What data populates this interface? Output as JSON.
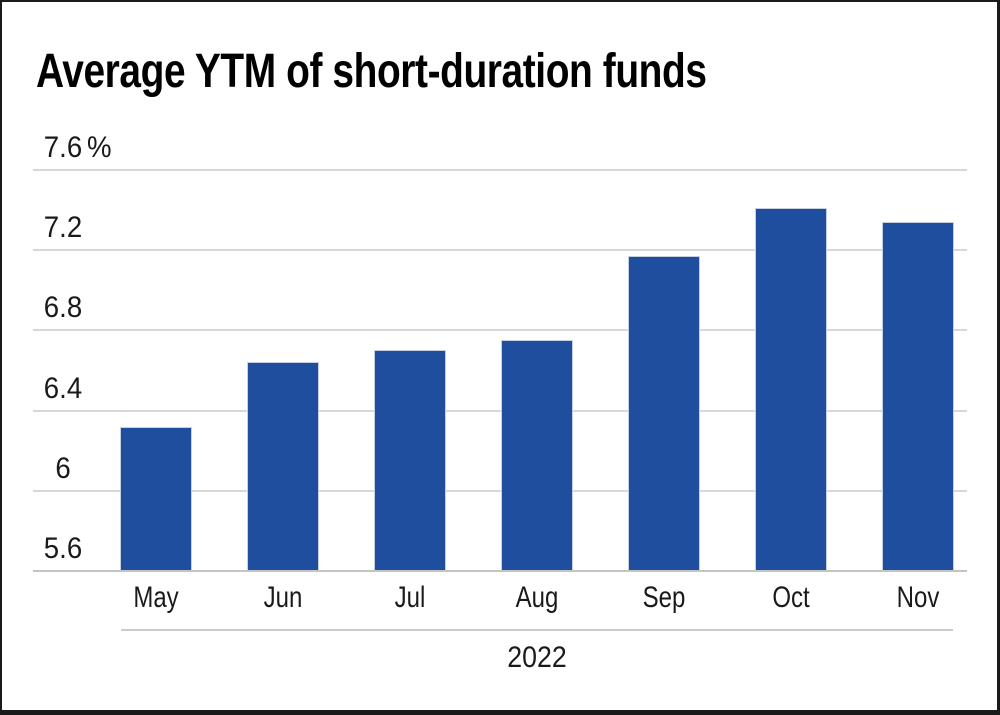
{
  "chart": {
    "title": "Average YTM of short-duration funds"
  },
  "chart_data": {
    "type": "bar",
    "title": "Average YTM of short-duration funds",
    "categories": [
      "May",
      "Jun",
      "Jul",
      "Aug",
      "Sep",
      "Oct",
      "Nov"
    ],
    "values": [
      6.32,
      6.64,
      6.7,
      6.75,
      7.17,
      7.41,
      7.34
    ],
    "unit": "%",
    "x_group_label": "2022",
    "xlabel": "2022",
    "ylabel": "",
    "ylim": [
      5.6,
      7.6
    ],
    "yticks": [
      {
        "value": 7.6,
        "label": "7.6",
        "unit": "%"
      },
      {
        "value": 7.2,
        "label": "7.2"
      },
      {
        "value": 6.8,
        "label": "6.8"
      },
      {
        "value": 6.4,
        "label": "6.4"
      },
      {
        "value": 6.0,
        "label": "6"
      },
      {
        "value": 5.6,
        "label": "5.6"
      }
    ],
    "grid": "horizontal",
    "legend": "none",
    "colors": {
      "bar_fill": "#1F4E9E",
      "bar_edge": "#C7CFE3",
      "gridline": "#D8D8D8",
      "baseline": "#C4C4C4",
      "separator": "#CCCCCC",
      "text": "#1A1A1A",
      "title_text": "#000000",
      "frame": "#1A1A1A",
      "background": "#FFFFFF"
    }
  }
}
